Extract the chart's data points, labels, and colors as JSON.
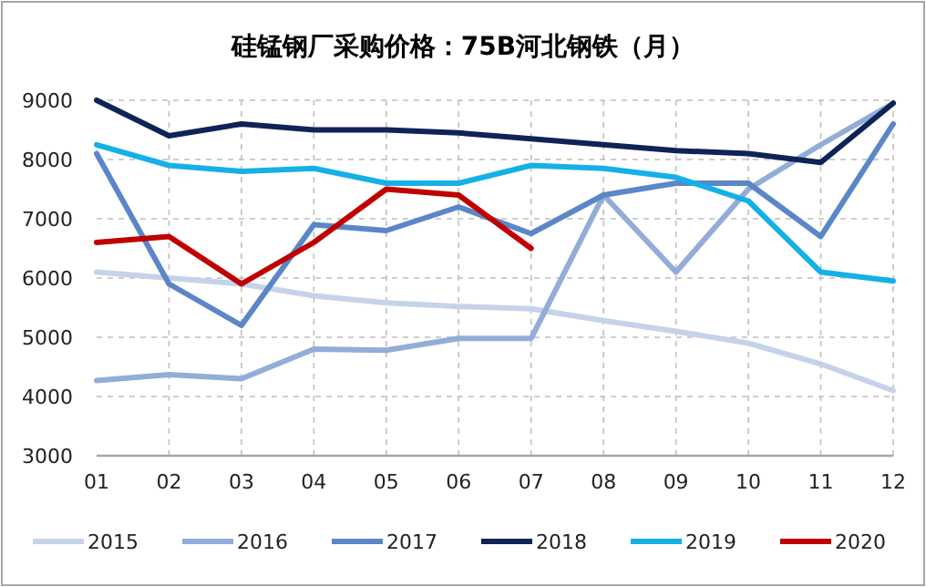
{
  "chart_data": {
    "type": "line",
    "title": "硅锰钢厂采购价格：75B河北钢铁（月）",
    "categories": [
      "01",
      "02",
      "03",
      "04",
      "05",
      "06",
      "07",
      "08",
      "09",
      "10",
      "11",
      "12"
    ],
    "series": [
      {
        "name": "2015",
        "color": "#c5d3ea",
        "values": [
          6100,
          6000,
          5900,
          5700,
          5580,
          5520,
          5480,
          5280,
          5100,
          4900,
          4550,
          4100
        ]
      },
      {
        "name": "2016",
        "color": "#93acd8",
        "values": [
          4270,
          4370,
          4300,
          4800,
          4780,
          4980,
          4980,
          7400,
          6100,
          7500,
          8250,
          8950
        ]
      },
      {
        "name": "2017",
        "color": "#5b86c8",
        "values": [
          8100,
          5900,
          5200,
          6900,
          6800,
          7200,
          6750,
          7400,
          7600,
          7600,
          6700,
          8600
        ]
      },
      {
        "name": "2018",
        "color": "#0e2457",
        "values": [
          9000,
          8400,
          8600,
          8500,
          8500,
          8450,
          8350,
          8250,
          8150,
          8100,
          7950,
          8950
        ]
      },
      {
        "name": "2019",
        "color": "#15b0e6",
        "values": [
          8250,
          7900,
          7800,
          7850,
          7600,
          7600,
          7900,
          7850,
          7700,
          7300,
          6100,
          5950
        ]
      },
      {
        "name": "2020",
        "color": "#c00000",
        "values": [
          6600,
          6700,
          5900,
          6600,
          7500,
          7400,
          6500,
          null,
          null,
          null,
          null,
          null
        ]
      }
    ],
    "ylim": [
      3000,
      9000
    ],
    "yticks": [
      3000,
      4000,
      5000,
      6000,
      7000,
      8000,
      9000
    ],
    "grid": true,
    "legend": "bottom",
    "line_style": "solid",
    "marker": "none"
  }
}
